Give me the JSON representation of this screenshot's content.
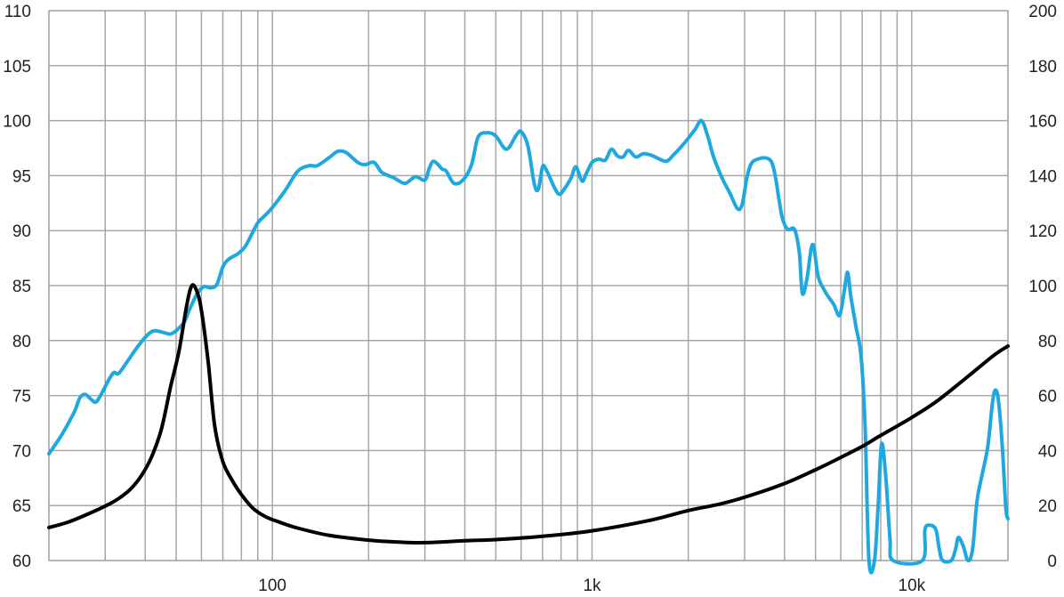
{
  "chart_data": {
    "type": "line",
    "title": "",
    "xlabel": "",
    "ylabel": "",
    "x_scale": "log",
    "xlim": [
      20,
      20000
    ],
    "x_ticks": [
      {
        "value": 100,
        "label": "100"
      },
      {
        "value": 1000,
        "label": "1k"
      },
      {
        "value": 10000,
        "label": "10k"
      }
    ],
    "y_left": {
      "lim": [
        60,
        110
      ],
      "ticks": [
        60,
        65,
        70,
        75,
        80,
        85,
        90,
        95,
        100,
        105,
        110
      ],
      "tick_labels": [
        "60",
        "65",
        "70",
        "75",
        "80",
        "85",
        "90",
        "95",
        "100",
        "105",
        "110"
      ]
    },
    "y_right": {
      "lim": [
        0,
        200
      ],
      "ticks": [
        0,
        20,
        40,
        60,
        80,
        100,
        120,
        140,
        160,
        180,
        200
      ],
      "tick_labels": [
        "0",
        "20",
        "40",
        "60",
        "80",
        "100",
        "120",
        "140",
        "160",
        "180",
        "200"
      ]
    },
    "grid": true,
    "legend": "none",
    "series": [
      {
        "axis": "left",
        "color": "#1fa8e0",
        "points": [
          [
            20,
            69.7
          ],
          [
            22,
            71.5
          ],
          [
            24,
            73.5
          ],
          [
            25,
            74.8
          ],
          [
            26,
            75.1
          ],
          [
            27,
            74.7
          ],
          [
            28,
            74.4
          ],
          [
            29,
            75.0
          ],
          [
            31,
            76.6
          ],
          [
            32,
            77.1
          ],
          [
            33,
            77.0
          ],
          [
            35,
            78.0
          ],
          [
            38,
            79.5
          ],
          [
            41,
            80.6
          ],
          [
            43,
            80.9
          ],
          [
            46,
            80.7
          ],
          [
            48,
            80.6
          ],
          [
            50,
            80.9
          ],
          [
            53,
            81.7
          ],
          [
            55,
            82.8
          ],
          [
            58,
            84.2
          ],
          [
            61,
            84.9
          ],
          [
            64,
            84.8
          ],
          [
            67,
            85.1
          ],
          [
            70,
            86.7
          ],
          [
            73,
            87.4
          ],
          [
            78,
            87.9
          ],
          [
            82,
            88.5
          ],
          [
            86,
            89.6
          ],
          [
            90,
            90.7
          ],
          [
            95,
            91.4
          ],
          [
            100,
            92.1
          ],
          [
            110,
            93.7
          ],
          [
            120,
            95.4
          ],
          [
            130,
            95.9
          ],
          [
            138,
            95.9
          ],
          [
            150,
            96.6
          ],
          [
            160,
            97.2
          ],
          [
            170,
            97.1
          ],
          [
            185,
            96.2
          ],
          [
            195,
            96.0
          ],
          [
            208,
            96.2
          ],
          [
            220,
            95.3
          ],
          [
            240,
            94.8
          ],
          [
            260,
            94.3
          ],
          [
            280,
            94.9
          ],
          [
            300,
            94.6
          ],
          [
            310,
            95.7
          ],
          [
            320,
            96.3
          ],
          [
            340,
            95.6
          ],
          [
            350,
            95.4
          ],
          [
            370,
            94.3
          ],
          [
            395,
            94.6
          ],
          [
            420,
            96.0
          ],
          [
            440,
            98.5
          ],
          [
            470,
            98.9
          ],
          [
            500,
            98.6
          ],
          [
            540,
            97.4
          ],
          [
            580,
            98.7
          ],
          [
            600,
            99.0
          ],
          [
            630,
            97.7
          ],
          [
            660,
            94.2
          ],
          [
            680,
            93.8
          ],
          [
            700,
            95.8
          ],
          [
            720,
            95.5
          ],
          [
            760,
            94.0
          ],
          [
            790,
            93.3
          ],
          [
            820,
            93.8
          ],
          [
            860,
            94.8
          ],
          [
            890,
            95.8
          ],
          [
            930,
            94.5
          ],
          [
            960,
            95.2
          ],
          [
            1000,
            96.2
          ],
          [
            1050,
            96.5
          ],
          [
            1100,
            96.4
          ],
          [
            1150,
            97.4
          ],
          [
            1200,
            96.8
          ],
          [
            1250,
            96.7
          ],
          [
            1300,
            97.3
          ],
          [
            1370,
            96.7
          ],
          [
            1450,
            97.0
          ],
          [
            1550,
            96.8
          ],
          [
            1700,
            96.3
          ],
          [
            1800,
            96.9
          ],
          [
            1950,
            98.0
          ],
          [
            2100,
            99.2
          ],
          [
            2200,
            100.0
          ],
          [
            2300,
            98.6
          ],
          [
            2400,
            96.7
          ],
          [
            2550,
            94.8
          ],
          [
            2700,
            93.4
          ],
          [
            2850,
            92.0
          ],
          [
            2950,
            92.4
          ],
          [
            3050,
            94.8
          ],
          [
            3150,
            96.1
          ],
          [
            3300,
            96.5
          ],
          [
            3500,
            96.6
          ],
          [
            3650,
            96.2
          ],
          [
            3750,
            94.8
          ],
          [
            3850,
            92.7
          ],
          [
            3950,
            91.0
          ],
          [
            4100,
            90.1
          ],
          [
            4300,
            90.1
          ],
          [
            4450,
            88.0
          ],
          [
            4550,
            84.3
          ],
          [
            4700,
            85.6
          ],
          [
            4850,
            88.4
          ],
          [
            4950,
            88.4
          ],
          [
            5100,
            85.8
          ],
          [
            5400,
            84.3
          ],
          [
            5700,
            83.3
          ],
          [
            5950,
            82.3
          ],
          [
            6150,
            84.5
          ],
          [
            6300,
            86.2
          ],
          [
            6450,
            84.0
          ],
          [
            6700,
            81.2
          ],
          [
            6950,
            78.5
          ],
          [
            7150,
            72.0
          ],
          [
            7350,
            60.0
          ],
          [
            7650,
            60.0
          ],
          [
            7850,
            65.0
          ],
          [
            8050,
            70.6
          ],
          [
            8300,
            67.5
          ],
          [
            8550,
            62.0
          ],
          [
            8750,
            60.0
          ],
          [
            10800,
            60.0
          ],
          [
            11000,
            62.8
          ],
          [
            11400,
            63.2
          ],
          [
            11900,
            62.8
          ],
          [
            12200,
            61.0
          ],
          [
            12500,
            60.0
          ],
          [
            13300,
            60.0
          ],
          [
            13700,
            61.0
          ],
          [
            14000,
            62.1
          ],
          [
            14500,
            61.3
          ],
          [
            15000,
            60.0
          ],
          [
            15500,
            61.0
          ],
          [
            16000,
            65.4
          ],
          [
            16600,
            67.8
          ],
          [
            17300,
            70.4
          ],
          [
            17900,
            74.4
          ],
          [
            18300,
            75.5
          ],
          [
            18700,
            74.4
          ],
          [
            19200,
            70.4
          ],
          [
            19700,
            64.8
          ],
          [
            20000,
            63.8
          ]
        ]
      },
      {
        "axis": "right",
        "color": "#000000",
        "points": [
          [
            20,
            12.0
          ],
          [
            23,
            14.0
          ],
          [
            26,
            16.5
          ],
          [
            30,
            19.8
          ],
          [
            33,
            22.5
          ],
          [
            36,
            26.0
          ],
          [
            39,
            31.0
          ],
          [
            42,
            38.0
          ],
          [
            45,
            48.0
          ],
          [
            48,
            63.0
          ],
          [
            51,
            76.0
          ],
          [
            54,
            93.0
          ],
          [
            56,
            100.0
          ],
          [
            58,
            98.0
          ],
          [
            60,
            91.0
          ],
          [
            63,
            72.0
          ],
          [
            66,
            49.0
          ],
          [
            70,
            36.0
          ],
          [
            75,
            29.0
          ],
          [
            80,
            24.0
          ],
          [
            87,
            19.0
          ],
          [
            95,
            16.0
          ],
          [
            105,
            14.0
          ],
          [
            120,
            11.8
          ],
          [
            150,
            9.2
          ],
          [
            200,
            7.4
          ],
          [
            250,
            6.7
          ],
          [
            300,
            6.5
          ],
          [
            400,
            7.2
          ],
          [
            500,
            7.6
          ],
          [
            700,
            8.8
          ],
          [
            1000,
            10.8
          ],
          [
            1500,
            14.5
          ],
          [
            2000,
            18.2
          ],
          [
            2500,
            20.5
          ],
          [
            3000,
            23.0
          ],
          [
            4000,
            28.0
          ],
          [
            5000,
            33.0
          ],
          [
            6000,
            37.5
          ],
          [
            7000,
            41.5
          ],
          [
            8000,
            45.5
          ],
          [
            10000,
            52.0
          ],
          [
            12000,
            58.0
          ],
          [
            15000,
            67.0
          ],
          [
            18000,
            74.5
          ],
          [
            20000,
            78.0
          ]
        ]
      }
    ]
  }
}
